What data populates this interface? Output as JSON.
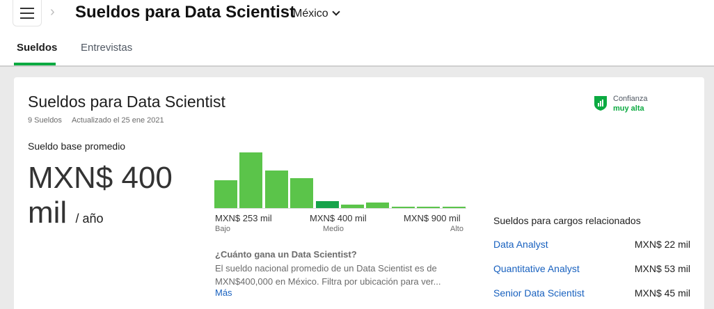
{
  "header": {
    "title": "Sueldos para Data Scientist",
    "country": "México"
  },
  "tabs": [
    {
      "label": "Sueldos",
      "active": true
    },
    {
      "label": "Entrevistas",
      "active": false
    }
  ],
  "card": {
    "title": "Sueldos para Data Scientist",
    "count": "9 Sueldos",
    "updated": "Actualizado el 25 ene 2021",
    "confidence_label": "Confianza",
    "confidence_value": "muy alta",
    "base_label": "Sueldo base promedio",
    "amount": "MXN$ 400 mil",
    "per": "/ año"
  },
  "histogram": {
    "bars": [
      4.9,
      9.8,
      6.6,
      5.3,
      1.2,
      0.6,
      1.0,
      0.15,
      0.15,
      0.2
    ],
    "highlight_index": 4,
    "axis": [
      {
        "value": "MXN$ 253 mil",
        "sub": "Bajo"
      },
      {
        "value": "MXN$ 400 mil",
        "sub": "Medio"
      },
      {
        "value": "MXN$ 900 mil",
        "sub": "Alto"
      }
    ]
  },
  "about": {
    "question": "¿Cuánto gana un Data Scientist?",
    "text": "El sueldo nacional promedio de un Data Scientist es de MXN$400,000 en México. Filtra por ubicación para ver...",
    "more": "Más"
  },
  "related": {
    "title": "Sueldos para cargos relacionados",
    "items": [
      {
        "name": "Data Analyst",
        "pay": "MXN$ 22 mil"
      },
      {
        "name": "Quantitative Analyst",
        "pay": "MXN$ 53 mil"
      },
      {
        "name": "Senior Data Scientist",
        "pay": "MXN$ 45 mil"
      }
    ]
  },
  "colors": {
    "accent": "#0caa41",
    "bar": "#5bc44a",
    "link": "#1861bf"
  }
}
